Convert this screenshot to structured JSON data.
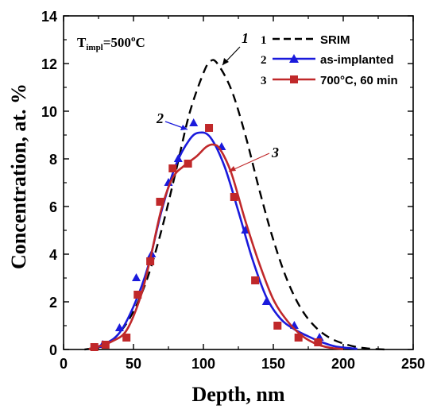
{
  "chart_data": {
    "type": "line",
    "xlabel": "Depth, nm",
    "ylabel": "Concentration, at. %",
    "xlim": [
      0,
      250
    ],
    "ylim": [
      0,
      14
    ],
    "xticks": [
      0,
      50,
      100,
      150,
      200,
      250
    ],
    "yticks": [
      0,
      2,
      4,
      6,
      8,
      10,
      12,
      14
    ],
    "annotation": {
      "T": "T",
      "sub": "impl",
      "eq": "=500",
      "deg": "o",
      "unit": "C"
    },
    "curve_labels": [
      {
        "text": "1",
        "series": "SRIM"
      },
      {
        "text": "2",
        "series": "as-implanted"
      },
      {
        "text": "3",
        "series": "700°C, 60 min"
      }
    ],
    "legend_position": "top-right",
    "series": [
      {
        "name": "SRIM",
        "legend_number": "1",
        "legend_text": "SRIM",
        "color": "#000000",
        "style": "dashed",
        "marker": "none",
        "line": [
          [
            15,
            0.0
          ],
          [
            20,
            0.05
          ],
          [
            30,
            0.2
          ],
          [
            40,
            0.7
          ],
          [
            50,
            1.6
          ],
          [
            60,
            3.0
          ],
          [
            70,
            5.0
          ],
          [
            80,
            7.4
          ],
          [
            90,
            9.9
          ],
          [
            100,
            11.6
          ],
          [
            105,
            12.1
          ],
          [
            110,
            12.0
          ],
          [
            120,
            10.9
          ],
          [
            130,
            9.0
          ],
          [
            140,
            6.7
          ],
          [
            150,
            4.6
          ],
          [
            160,
            2.9
          ],
          [
            170,
            1.7
          ],
          [
            180,
            0.95
          ],
          [
            190,
            0.5
          ],
          [
            200,
            0.25
          ],
          [
            210,
            0.1
          ],
          [
            220,
            0.03
          ],
          [
            230,
            0.0
          ]
        ]
      },
      {
        "name": "as-implanted",
        "legend_number": "2",
        "legend_text": "as-implanted",
        "color": "#1a1adc",
        "style": "solid",
        "marker": "triangle",
        "line": [
          [
            20,
            0.05
          ],
          [
            30,
            0.25
          ],
          [
            40,
            0.7
          ],
          [
            50,
            1.8
          ],
          [
            60,
            3.4
          ],
          [
            70,
            5.8
          ],
          [
            80,
            7.7
          ],
          [
            90,
            8.8
          ],
          [
            97,
            9.1
          ],
          [
            105,
            8.9
          ],
          [
            115,
            7.7
          ],
          [
            125,
            5.8
          ],
          [
            135,
            3.8
          ],
          [
            145,
            2.2
          ],
          [
            155,
            1.3
          ],
          [
            165,
            0.85
          ],
          [
            175,
            0.55
          ],
          [
            185,
            0.3
          ],
          [
            195,
            0.12
          ],
          [
            210,
            0.03
          ]
        ],
        "markers": [
          [
            28,
            0.2
          ],
          [
            40,
            0.9
          ],
          [
            52,
            3.0
          ],
          [
            63,
            4.0
          ],
          [
            75,
            7.0
          ],
          [
            82,
            8.0
          ],
          [
            93,
            9.5
          ],
          [
            113,
            8.5
          ],
          [
            130,
            5.0
          ],
          [
            145,
            2.0
          ],
          [
            165,
            1.0
          ],
          [
            183,
            0.5
          ]
        ]
      },
      {
        "name": "700°C, 60 min",
        "legend_number": "3",
        "legend_text": "700°C, 60 min",
        "color": "#c0282a",
        "style": "solid",
        "marker": "square",
        "line": [
          [
            18,
            0.02
          ],
          [
            25,
            0.12
          ],
          [
            35,
            0.35
          ],
          [
            45,
            0.8
          ],
          [
            55,
            2.2
          ],
          [
            62,
            3.8
          ],
          [
            70,
            5.9
          ],
          [
            78,
            7.2
          ],
          [
            86,
            7.7
          ],
          [
            95,
            8.1
          ],
          [
            102,
            8.5
          ],
          [
            107,
            8.6
          ],
          [
            112,
            8.4
          ],
          [
            120,
            7.4
          ],
          [
            130,
            5.4
          ],
          [
            140,
            3.6
          ],
          [
            150,
            2.1
          ],
          [
            160,
            1.2
          ],
          [
            170,
            0.6
          ],
          [
            180,
            0.25
          ],
          [
            190,
            0.08
          ],
          [
            200,
            0.02
          ]
        ],
        "markers": [
          [
            22,
            0.1
          ],
          [
            30,
            0.2
          ],
          [
            45,
            0.5
          ],
          [
            53,
            2.3
          ],
          [
            62,
            3.7
          ],
          [
            69,
            6.2
          ],
          [
            78,
            7.6
          ],
          [
            89,
            7.8
          ],
          [
            104,
            9.3
          ],
          [
            122,
            6.4
          ],
          [
            137,
            2.9
          ],
          [
            153,
            1.0
          ],
          [
            168,
            0.5
          ],
          [
            182,
            0.3
          ]
        ]
      }
    ]
  }
}
